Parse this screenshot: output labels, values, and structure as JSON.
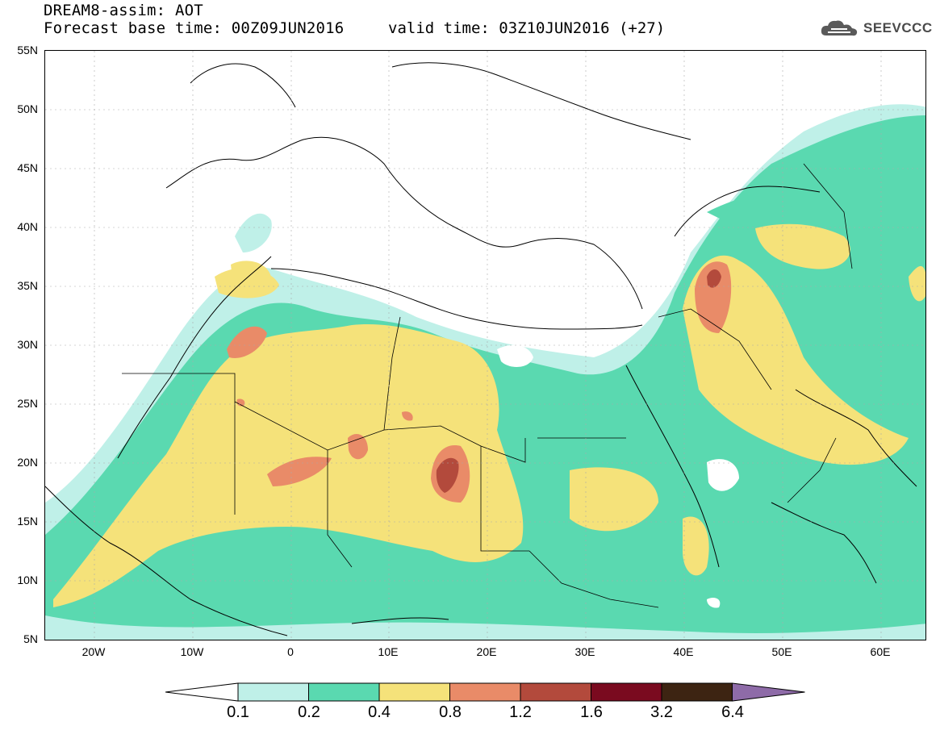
{
  "header": {
    "title": "DREAM8-assim: AOT",
    "base_time": "Forecast base time: 00Z09JUN2016",
    "valid_time": "valid time: 03Z10JUN2016 (+27)",
    "logo": "SEEVCCC"
  },
  "axes": {
    "lat_labels": [
      "55N",
      "50N",
      "45N",
      "40N",
      "35N",
      "30N",
      "25N",
      "20N",
      "15N",
      "10N",
      "5N"
    ],
    "lon_labels": [
      "20W",
      "10W",
      "0",
      "10E",
      "20E",
      "30E",
      "40E",
      "50E",
      "60E"
    ]
  },
  "legend": {
    "labels": [
      "0.1",
      "0.2",
      "0.4",
      "0.8",
      "1.2",
      "1.6",
      "3.2",
      "6.4"
    ],
    "colors": [
      "#ffffff",
      "#bff0e8",
      "#5ad9b0",
      "#f5e27a",
      "#e98b68",
      "#b34a3c",
      "#7a0a1f",
      "#3d2412",
      "#8e6ba8"
    ]
  }
}
